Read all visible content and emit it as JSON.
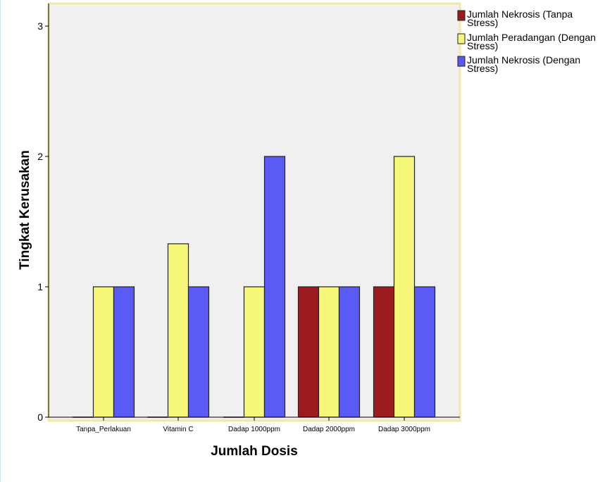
{
  "chart_data": {
    "type": "bar",
    "title": "",
    "xlabel": "Jumlah Dosis",
    "ylabel": "Tingkat Kerusakan",
    "ylim": [
      0,
      3.1
    ],
    "yticks": [
      0,
      1,
      2,
      3
    ],
    "grid": false,
    "legend_position": "top-right outside",
    "categories": [
      "Tanpa_Perlakuan",
      "Vitamin C",
      "Dadap 1000ppm",
      "Dadap 2000ppm",
      "Dadap 3000ppm"
    ],
    "series": [
      {
        "name": "Jumlah Nekrosis (Tanpa Stress)",
        "color": "#9b1b1e",
        "values": [
          0,
          0,
          0,
          1,
          1
        ]
      },
      {
        "name": "Jumlah Peradangan (Dengan Stress)",
        "color": "#f7f77a",
        "values": [
          1,
          1.33,
          1,
          1,
          2
        ]
      },
      {
        "name": "Jumlah Nekrosis (Dengan Stress)",
        "color": "#5a5af5",
        "values": [
          1,
          1,
          2,
          1,
          1
        ]
      }
    ],
    "legend": [
      {
        "line1": "Jumlah Nekrosis (Tanpa",
        "line2": "Stress)"
      },
      {
        "line1": "Jumlah Peradangan (Dengan",
        "line2": "Stress)"
      },
      {
        "line1": "Jumlah Nekrosis (Dengan",
        "line2": "Stress)"
      }
    ],
    "colors": {
      "plot_bg": "#f0f0f0",
      "plot_border": "#f2e7a6",
      "bar_outline": "#222222"
    }
  }
}
